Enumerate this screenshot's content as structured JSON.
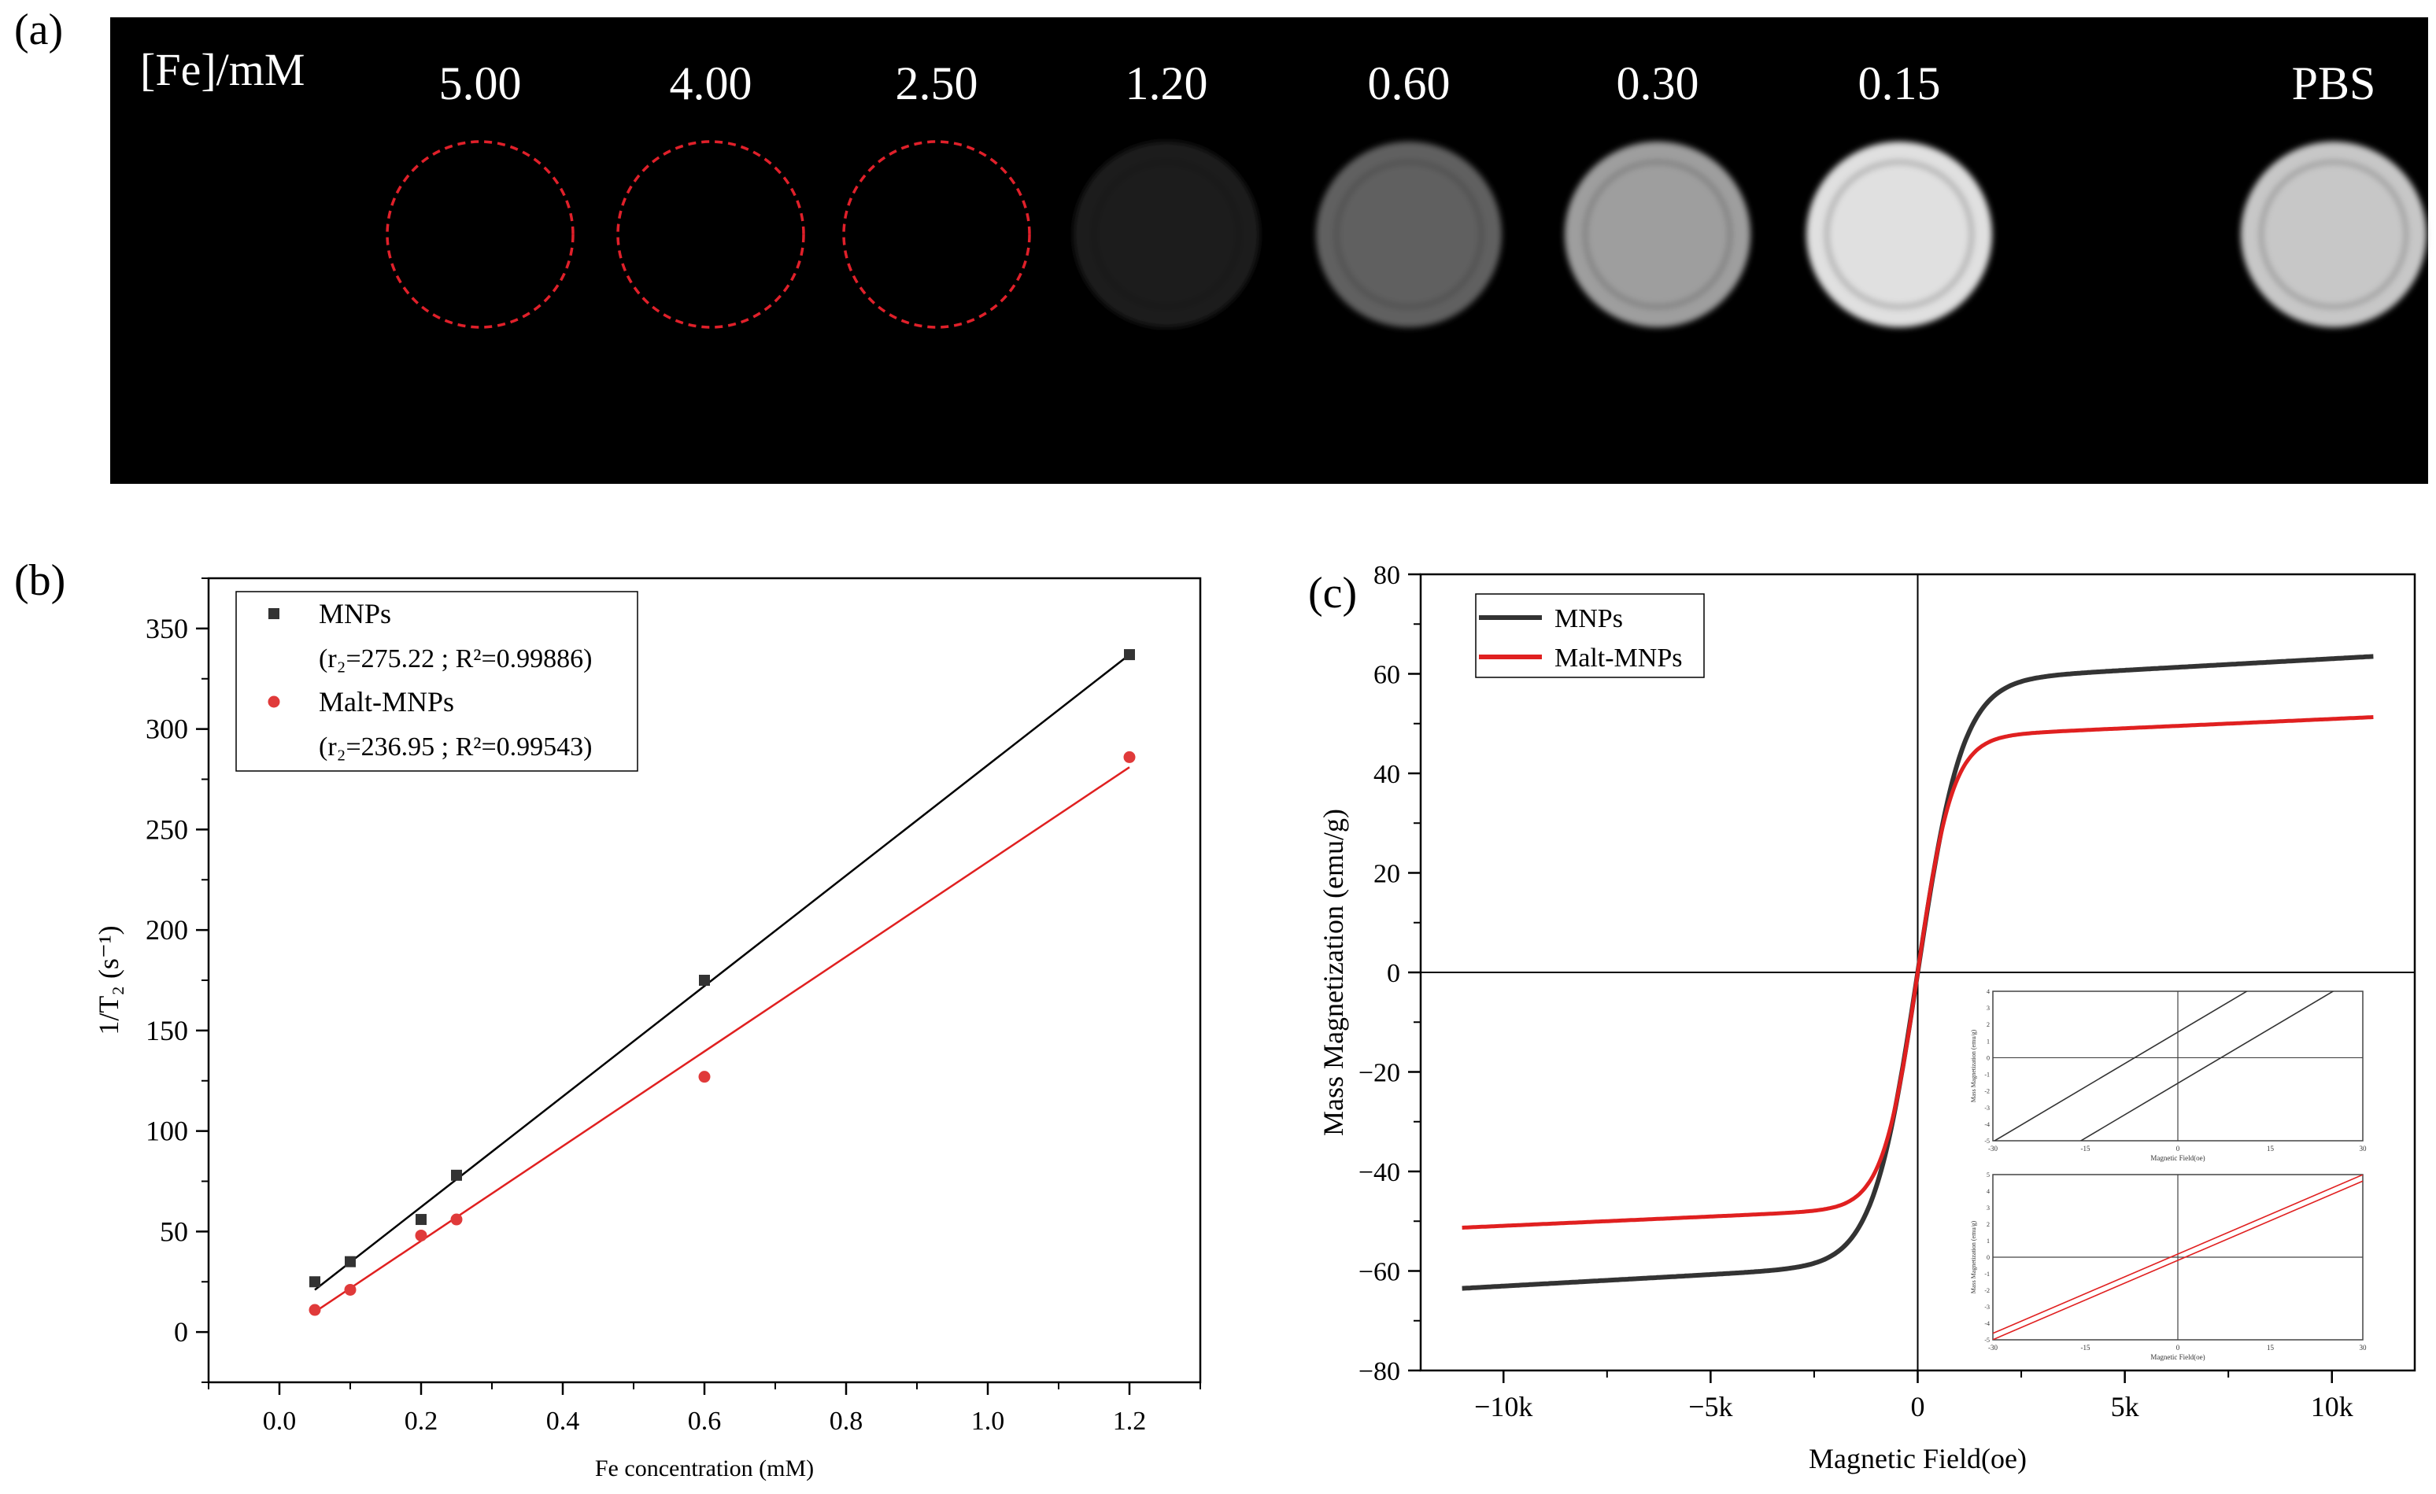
{
  "panel_labels": {
    "a": "(a)",
    "b": "(b)",
    "c": "(c)"
  },
  "mri": {
    "row_label": "[Fe]/mM",
    "samples": [
      {
        "label": "5.00",
        "brightness": 0.0,
        "dashed_outline": true
      },
      {
        "label": "4.00",
        "brightness": 0.0,
        "dashed_outline": true
      },
      {
        "label": "2.50",
        "brightness": 0.0,
        "dashed_outline": true
      },
      {
        "label": "1.20",
        "brightness": 0.12,
        "dashed_outline": false
      },
      {
        "label": "0.60",
        "brightness": 0.38,
        "dashed_outline": false
      },
      {
        "label": "0.30",
        "brightness": 0.62,
        "dashed_outline": false
      },
      {
        "label": "0.15",
        "brightness": 0.88,
        "dashed_outline": false
      },
      {
        "label": "PBS",
        "brightness": 0.78,
        "dashed_outline": false
      }
    ],
    "outline_color": "#e0202a"
  },
  "chart_data": [
    {
      "type": "scatter",
      "xlabel": "Fe concentration (mM)",
      "ylabel": "1/T₂ (s⁻¹)",
      "xlim": [
        -0.1,
        1.3
      ],
      "ylim": [
        -25,
        375
      ],
      "xticks": [
        "0.0",
        "0.2",
        "0.4",
        "0.6",
        "0.8",
        "1.0",
        "1.2"
      ],
      "yticks": [
        "0",
        "50",
        "100",
        "150",
        "200",
        "250",
        "300",
        "350"
      ],
      "legend_position": "top-left",
      "series": [
        {
          "name": "MNPs",
          "fit_label": "(r₂=275.22 ; R²=0.99886)",
          "marker": "square",
          "color": "#333333",
          "line_color": "#000000",
          "x": [
            0.05,
            0.1,
            0.2,
            0.25,
            0.6,
            1.2
          ],
          "y": [
            25,
            35,
            56,
            78,
            175,
            337
          ],
          "fit_line": {
            "x": [
              0.05,
              1.2
            ],
            "y": [
              21,
              337
            ]
          }
        },
        {
          "name": "Malt-MNPs",
          "fit_label": "(r₂=236.95 ; R²=0.99543)",
          "marker": "circle",
          "color": "#e03a3a",
          "line_color": "#e02020",
          "x": [
            0.05,
            0.1,
            0.2,
            0.25,
            0.6,
            1.2
          ],
          "y": [
            11,
            21,
            48,
            56,
            127,
            286
          ],
          "fit_line": {
            "x": [
              0.05,
              1.2
            ],
            "y": [
              10,
              281
            ]
          }
        }
      ]
    },
    {
      "type": "line",
      "xlabel": "Magnetic Field(oe)",
      "ylabel": "Mass Magnetization (emu/g)",
      "xlim": [
        -12000,
        12000
      ],
      "ylim": [
        -80,
        80
      ],
      "xticks": [
        "−10k",
        "−5k",
        "0",
        "5k",
        "10k"
      ],
      "yticks": [
        "80",
        "60",
        "40",
        "20",
        "0",
        "−20",
        "−40",
        "−60",
        "−80"
      ],
      "legend_position": "top-left",
      "series": [
        {
          "name": "MNPs",
          "color": "#333333",
          "saturation": 63.5,
          "h_half": 900
        },
        {
          "name": "Malt-MNPs",
          "color": "#e02020",
          "saturation": 51.3,
          "h_half": 700
        }
      ],
      "insets": [
        {
          "color": "#333333",
          "xlabel": "Magnetic Field(oe)",
          "ylabel": "Mass Magnetization (emu/g)",
          "xticks": [
            "-30",
            "-15",
            "0",
            "15",
            "30"
          ],
          "yticks": [
            "4",
            "3",
            "2",
            "1",
            "0",
            "-1",
            "-2",
            "-3",
            "-4",
            "-5"
          ]
        },
        {
          "color": "#e02020",
          "xlabel": "Magnetic Field(oe)",
          "ylabel": "Mass Magnetization (emu/g)",
          "xticks": [
            "-30",
            "-15",
            "0",
            "15",
            "30"
          ],
          "yticks": [
            "5",
            "4",
            "3",
            "2",
            "1",
            "0",
            "-1",
            "-2",
            "-3",
            "-4",
            "-5"
          ]
        }
      ]
    }
  ]
}
